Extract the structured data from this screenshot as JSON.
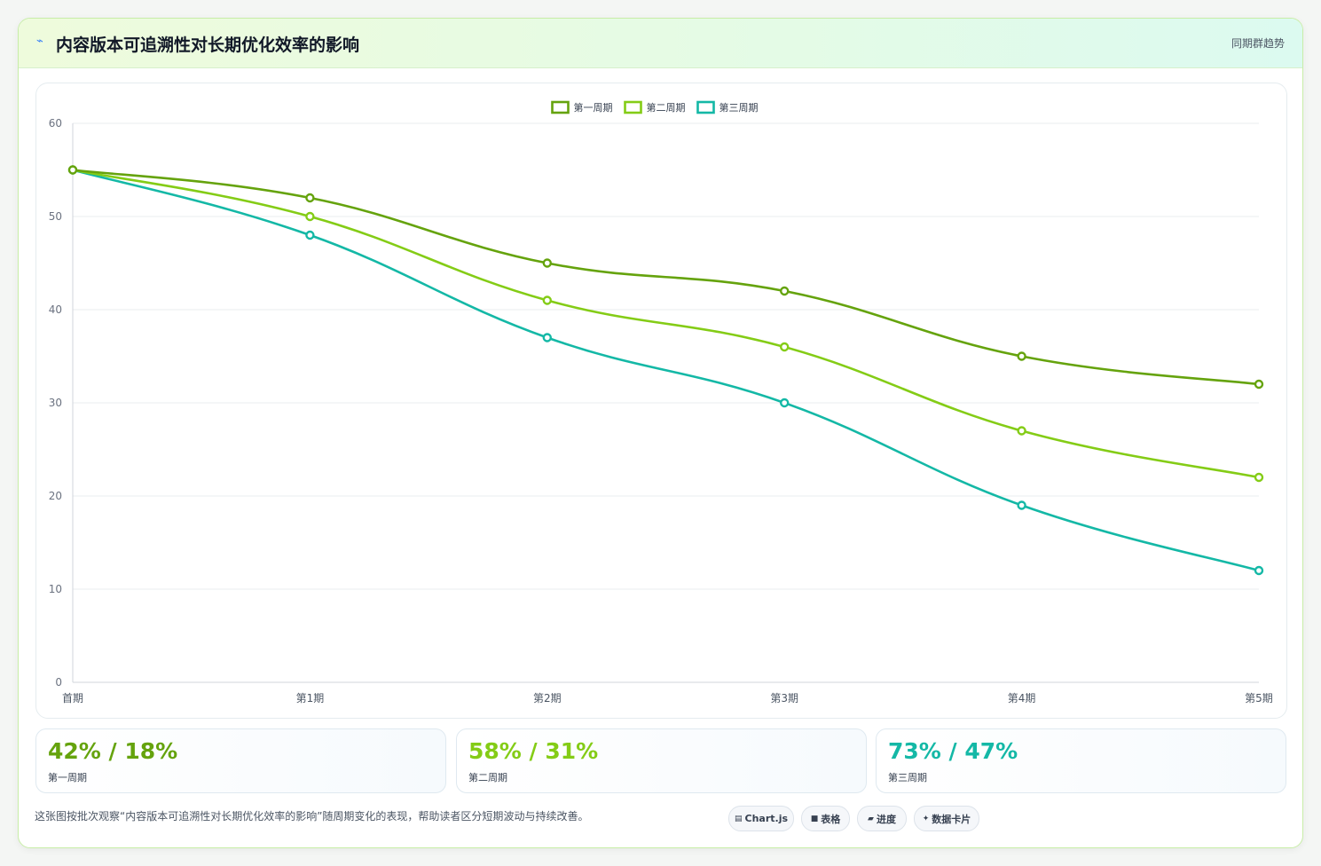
{
  "header": {
    "icon": "lightning-icon",
    "title": "内容版本可追溯性对长期优化效率的影响",
    "right_label": "同期群趋势"
  },
  "chart_data": {
    "type": "line",
    "title": "",
    "xlabel": "",
    "ylabel": "",
    "categories": [
      "首期",
      "第1期",
      "第2期",
      "第3期",
      "第4期",
      "第5期"
    ],
    "ylim": [
      0,
      60
    ],
    "yticks": [
      0,
      10,
      20,
      30,
      40,
      50,
      60
    ],
    "grid": true,
    "legend_position": "top-center",
    "series": [
      {
        "name": "第一周期",
        "color": "#65a30d",
        "values": [
          55,
          52,
          45,
          42,
          35,
          32
        ]
      },
      {
        "name": "第二周期",
        "color": "#84cc16",
        "values": [
          55,
          50,
          41,
          36,
          27,
          22
        ]
      },
      {
        "name": "第三周期",
        "color": "#14b8a6",
        "values": [
          55,
          48,
          37,
          30,
          19,
          12
        ]
      }
    ]
  },
  "stats": [
    {
      "value": "42% / 18%",
      "label": "第一周期",
      "color": "#65a30d"
    },
    {
      "value": "58% / 31%",
      "label": "第二周期",
      "color": "#84cc16"
    },
    {
      "value": "73% / 47%",
      "label": "第三周期",
      "color": "#14b8a6"
    }
  ],
  "footer": {
    "description": "这张图按批次观察“内容版本可追溯性对长期优化效率的影响”随周期变化的表现，帮助读者区分短期波动与持续改善。",
    "tags": [
      {
        "icon": "chart-icon",
        "label": "Chart.js"
      },
      {
        "icon": "table-icon",
        "label": "表格"
      },
      {
        "icon": "progress-icon",
        "label": "进度"
      },
      {
        "icon": "data-card-icon",
        "label": "数据卡片"
      }
    ]
  }
}
